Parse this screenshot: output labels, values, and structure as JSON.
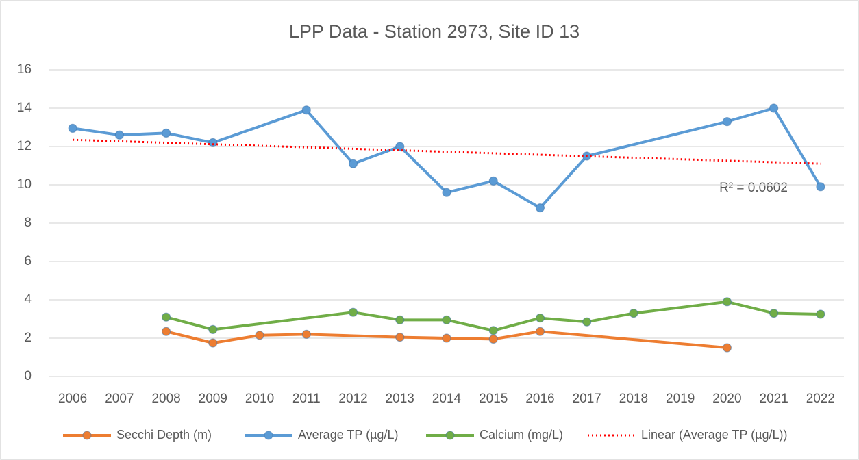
{
  "chart_data": {
    "type": "line",
    "title": "LPP Data - Station 2973, Site ID 13",
    "categories": [
      "2006",
      "2007",
      "2008",
      "2009",
      "2010",
      "2011",
      "2012",
      "2013",
      "2014",
      "2015",
      "2016",
      "2017",
      "2018",
      "2019",
      "2020",
      "2021",
      "2022"
    ],
    "ylim": [
      0,
      16
    ],
    "yticks": [
      0,
      2,
      4,
      6,
      8,
      10,
      12,
      14,
      16
    ],
    "grid": true,
    "span_gaps": true,
    "legend": "bottom",
    "series": [
      {
        "name": "Secchi Depth (m)",
        "color": "#ed7d31",
        "marker": true,
        "values": [
          null,
          null,
          2.35,
          1.75,
          2.15,
          2.2,
          null,
          2.05,
          2.0,
          1.95,
          2.35,
          null,
          null,
          null,
          1.5,
          null,
          null
        ]
      },
      {
        "name": "Average TP (µg/L)",
        "color": "#5b9bd5",
        "marker": true,
        "values": [
          12.95,
          12.6,
          12.7,
          12.2,
          null,
          13.9,
          11.1,
          12.0,
          9.6,
          10.2,
          8.8,
          11.5,
          null,
          null,
          13.3,
          14.0,
          9.9
        ]
      },
      {
        "name": "Calcium (mg/L)",
        "color": "#70ad47",
        "marker": true,
        "values": [
          null,
          null,
          3.1,
          2.45,
          null,
          null,
          3.35,
          2.95,
          2.95,
          2.4,
          3.05,
          2.85,
          3.3,
          null,
          3.9,
          3.3,
          3.25
        ]
      },
      {
        "name": "Linear (Average TP (µg/L))",
        "color": "#ff0000",
        "marker": false,
        "dotted": true,
        "values": [
          12.35,
          null,
          null,
          null,
          null,
          null,
          null,
          null,
          null,
          null,
          null,
          null,
          null,
          null,
          null,
          null,
          11.1
        ]
      }
    ],
    "annotation": "R² = 0.0602"
  }
}
